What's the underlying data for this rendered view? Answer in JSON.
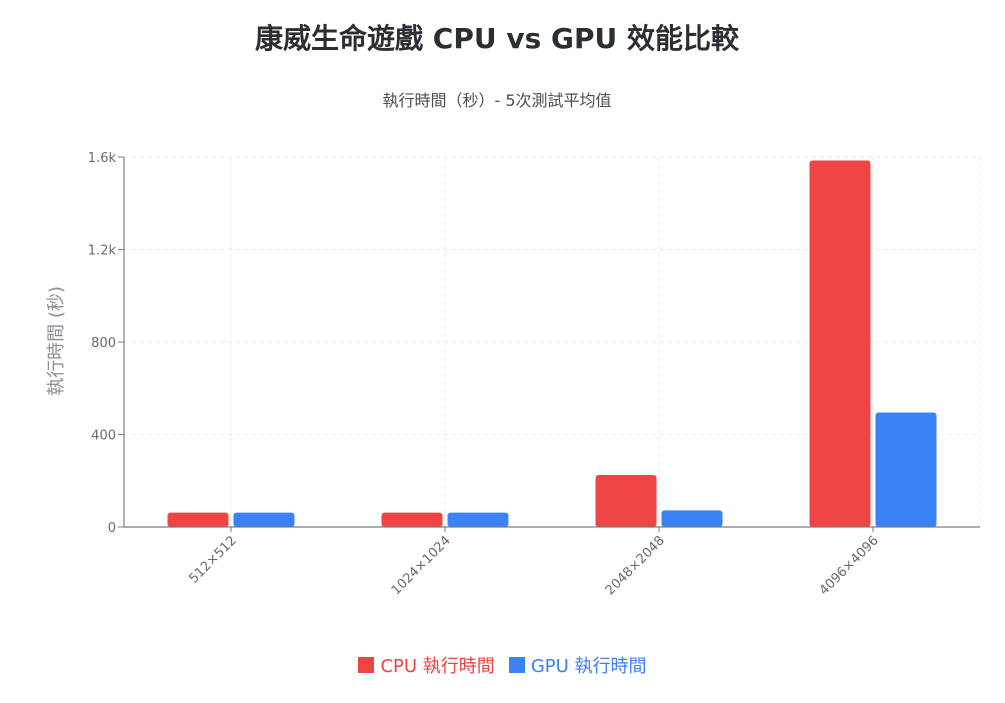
{
  "chart_data": {
    "type": "bar",
    "title": "康威生命遊戲 CPU vs GPU 效能比較",
    "subtitle": "執行時間（秒）- 5次測試平均值",
    "xlabel": "",
    "ylabel": "執行時間 (秒)",
    "categories": [
      "512×512",
      "1024×1024",
      "2048×2048",
      "4096×4096"
    ],
    "series": [
      {
        "name": "CPU 執行時間",
        "color": "#ef4444",
        "values": [
          62,
          62,
          225,
          1585
        ]
      },
      {
        "name": "GPU 執行時間",
        "color": "#3b82f6",
        "values": [
          62,
          62,
          72,
          495
        ]
      }
    ],
    "ylim": [
      0,
      1600
    ],
    "yticks": [
      0,
      400,
      800,
      1200,
      1600
    ],
    "ytick_labels": [
      "0",
      "400",
      "800",
      "1.2k",
      "1.6k"
    ],
    "grid": true,
    "legend_position": "bottom"
  }
}
